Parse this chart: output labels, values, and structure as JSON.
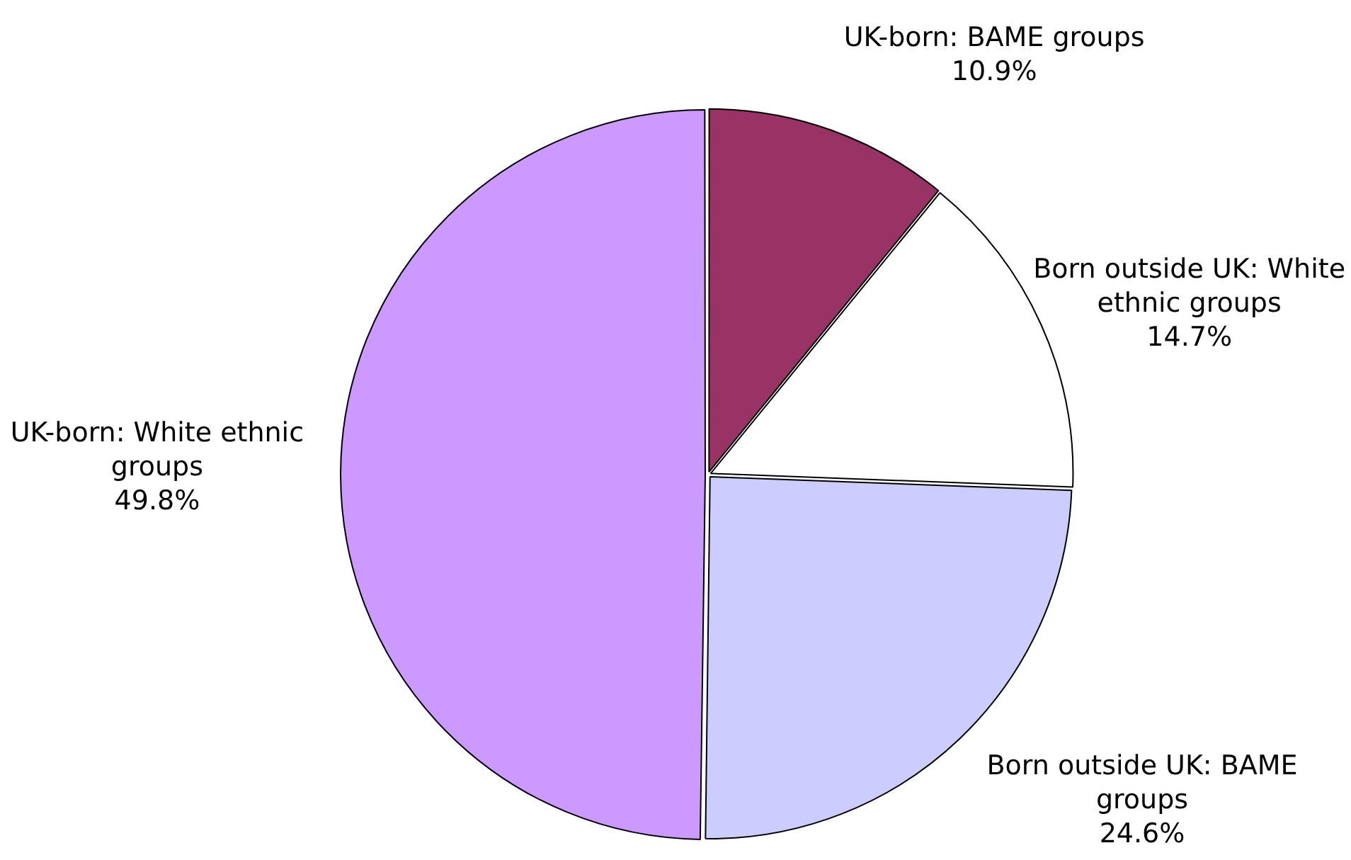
{
  "chart_data": {
    "type": "pie",
    "categories": [
      "UK-born: BAME groups",
      "Born outside UK: White ethnic groups",
      "Born outside UK: BAME groups",
      "UK-born: White ethnic groups"
    ],
    "values": [
      10.9,
      14.7,
      24.6,
      49.8
    ],
    "colors": [
      "#993366",
      "#ffffff",
      "#ccccff",
      "#cc99ff"
    ],
    "value_labels": [
      "10.9%",
      "14.7%",
      "24.6%",
      "49.8%"
    ],
    "legend": false
  }
}
